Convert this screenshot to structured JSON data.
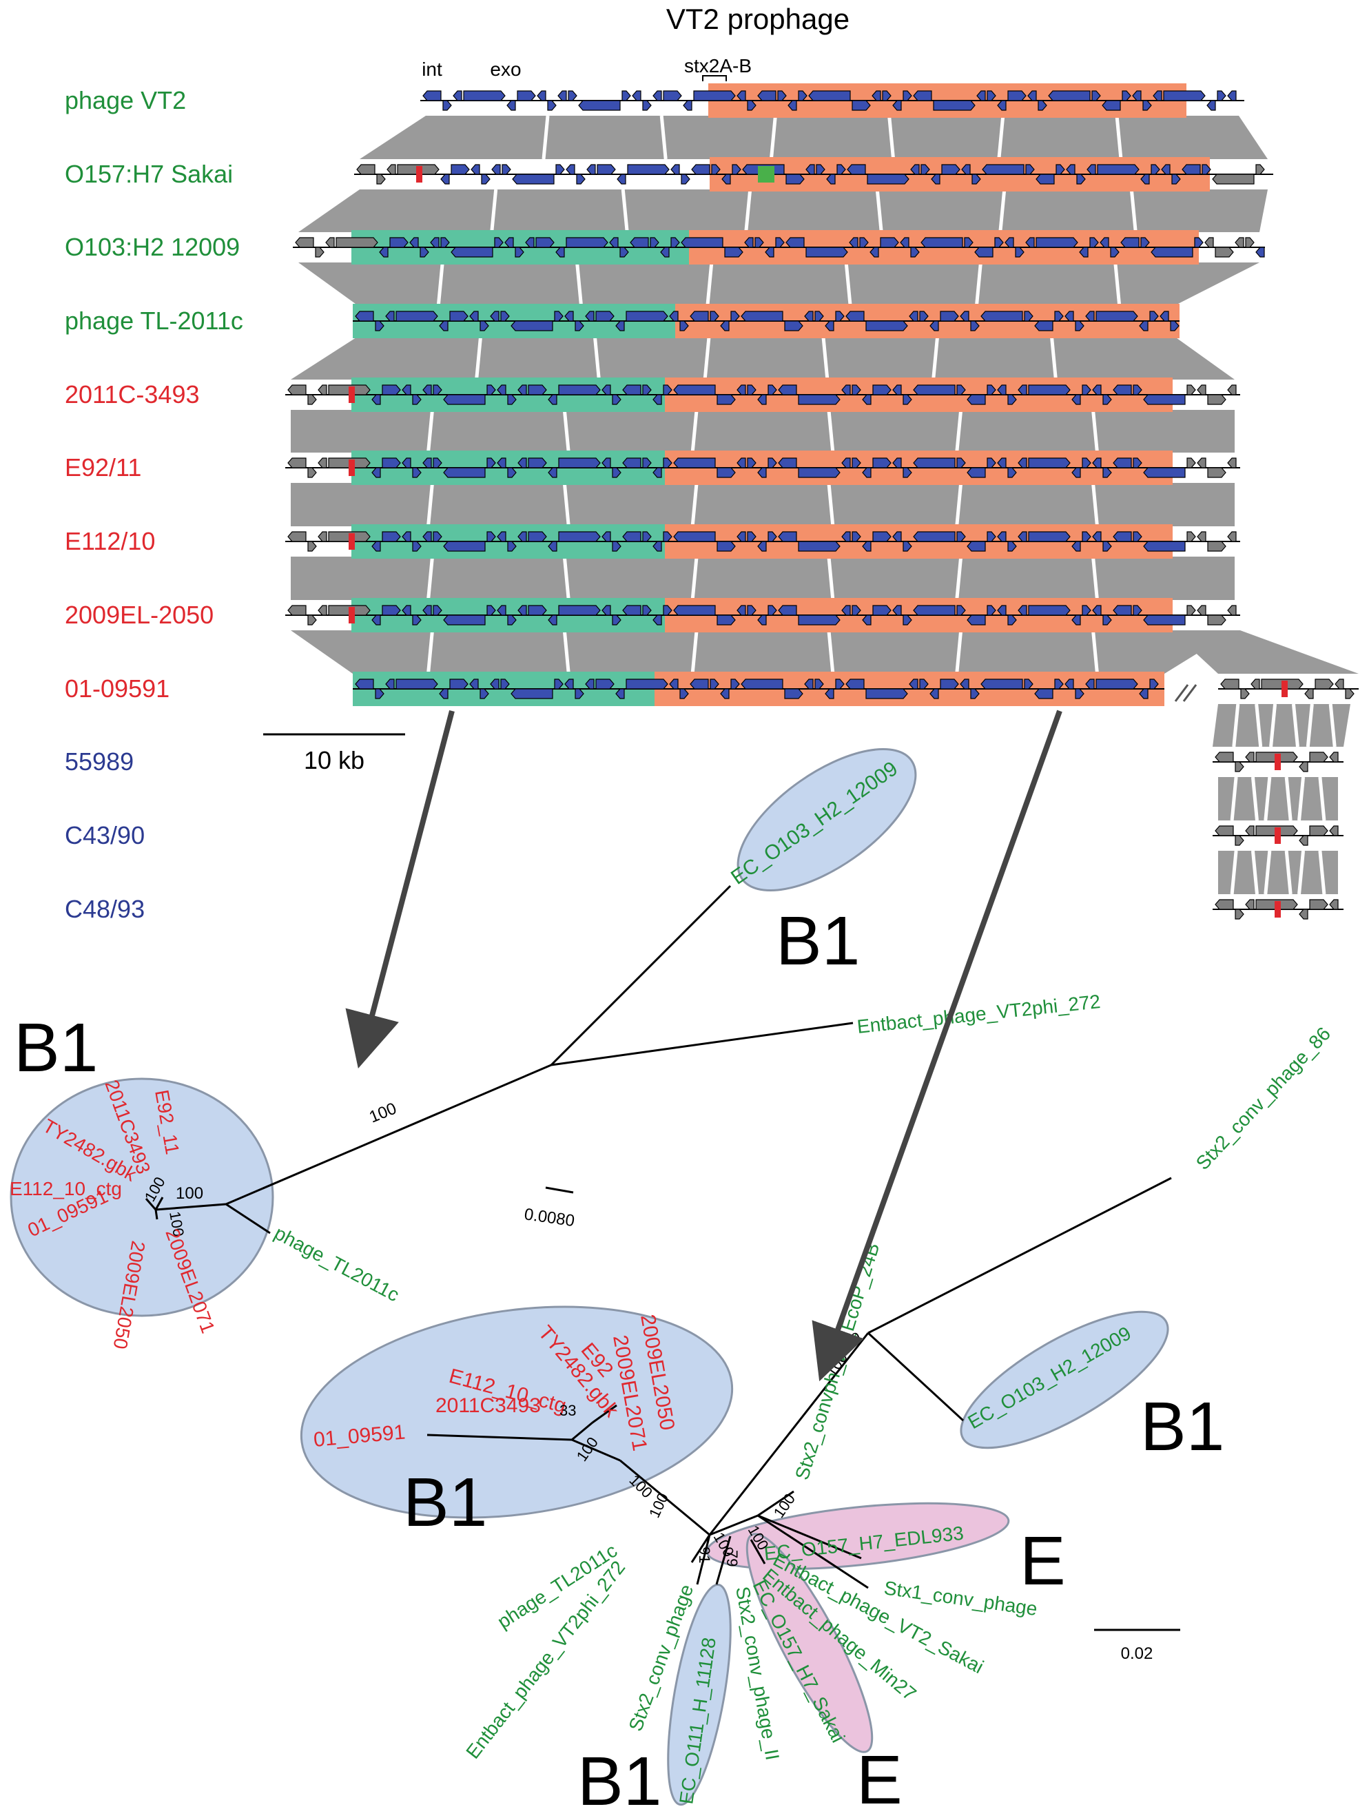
{
  "figure": {
    "title": "VT2 prophage",
    "gene_labels": [
      "int",
      "exo",
      "stx2A-B"
    ],
    "scale_bar_top": "10 kb",
    "colors": {
      "green_label": "#1f8f3a",
      "red_label": "#e0282e",
      "blue_label": "#2b3a91",
      "gene_blue": "#3a4fb0",
      "gene_gray": "#7f7f7f",
      "marker_red": "#e0282e",
      "marker_green": "#49b04a",
      "region_teal": "#5cc3a0",
      "region_salmon": "#f4906a",
      "homology_gray": "#9a9a9a",
      "ellipse_blue": "#c5d6ee",
      "ellipse_pink": "#ebc3dd"
    },
    "tracks": [
      {
        "name": "phage VT2",
        "color": "green"
      },
      {
        "name": "O157:H7 Sakai",
        "color": "green"
      },
      {
        "name": "O103:H2 12009",
        "color": "green"
      },
      {
        "name": "phage TL-2011c",
        "color": "green"
      },
      {
        "name": "2011C-3493",
        "color": "red"
      },
      {
        "name": "E92/11",
        "color": "red"
      },
      {
        "name": "E112/10",
        "color": "red"
      },
      {
        "name": "2009EL-2050",
        "color": "red"
      },
      {
        "name": "01-09591",
        "color": "red"
      },
      {
        "name": "55989",
        "color": "blue"
      },
      {
        "name": "C43/90",
        "color": "blue"
      },
      {
        "name": "C48/93",
        "color": "blue"
      }
    ],
    "tree_left": {
      "scale": "0.0080",
      "clades": [
        "B1",
        "B1"
      ],
      "ellipse_label_top": "EC_O103_H2_12009",
      "leaves_green": [
        "Entbact_phage_VT2phi_272",
        "phage_TL2011c"
      ],
      "leaves_red": [
        "2011C3493",
        "E92_11",
        "TY2482.gbk",
        "E112_10_ctg",
        "01_09591",
        "2009EL2050",
        "2009EL2071"
      ],
      "bootstrap": [
        "100",
        "100",
        "100",
        "100"
      ]
    },
    "tree_right": {
      "scale": "0.02",
      "clades": [
        "B1",
        "B1",
        "E",
        "E",
        "B1"
      ],
      "leaves_red": [
        "TY2482.gbk",
        "E92",
        "E112_10_ctg",
        "2011C3493",
        "2009EL2050",
        "2009EL2071",
        "01_09591"
      ],
      "leaves_green": [
        "Stx2_conv_phage_86",
        "Stx2_convph_vB_EcoP_24B",
        "EC_O103_H2_12009",
        "EC_O157_H7_EDL933",
        "Stx1_conv_phage",
        "Entbact_phage_VT2_Sakai",
        "Entbact_phage_Min27",
        "EC_O157_H7_Sakai",
        "Stx2_conv_phage_II",
        "EC_O111_H_11128",
        "Stx2_conv_phage",
        "Entbact_phage_VT2phi_272",
        "phage_TL2011c"
      ],
      "bootstrap": [
        "100",
        "100",
        "100",
        "100",
        "100",
        "100",
        "33",
        "100",
        "100",
        "91",
        "79"
      ]
    }
  }
}
